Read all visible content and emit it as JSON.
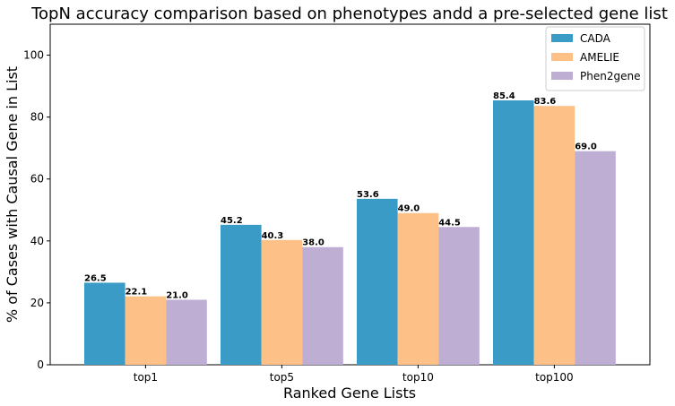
{
  "chart_data": {
    "type": "bar",
    "title": "TopN accuracy comparison based on phenotypes andd a pre-selected gene list",
    "xlabel": "Ranked Gene Lists",
    "ylabel": "% of Cases with Causal Gene in List",
    "categories": [
      "top1",
      "top5",
      "top10",
      "top100"
    ],
    "ylim": [
      0,
      110
    ],
    "yticks": [
      0,
      20,
      40,
      60,
      80,
      100
    ],
    "legend_position": "top-right",
    "grid": false,
    "series": [
      {
        "name": "CADA",
        "color": "#3a9bc6",
        "values": [
          26.5,
          45.2,
          53.6,
          85.4
        ],
        "labels": [
          "26.5",
          "45.2",
          "53.6",
          "85.4"
        ]
      },
      {
        "name": "AMELIE",
        "color": "#fdc086",
        "values": [
          22.1,
          40.3,
          49.0,
          83.6
        ],
        "labels": [
          "22.1",
          "40.3",
          "49.0",
          "83.6"
        ]
      },
      {
        "name": "Phen2gene",
        "color": "#beaed4",
        "values": [
          21.0,
          38.0,
          44.5,
          69.0
        ],
        "labels": [
          "21.0",
          "38.0",
          "44.5",
          "69.0"
        ]
      }
    ]
  }
}
